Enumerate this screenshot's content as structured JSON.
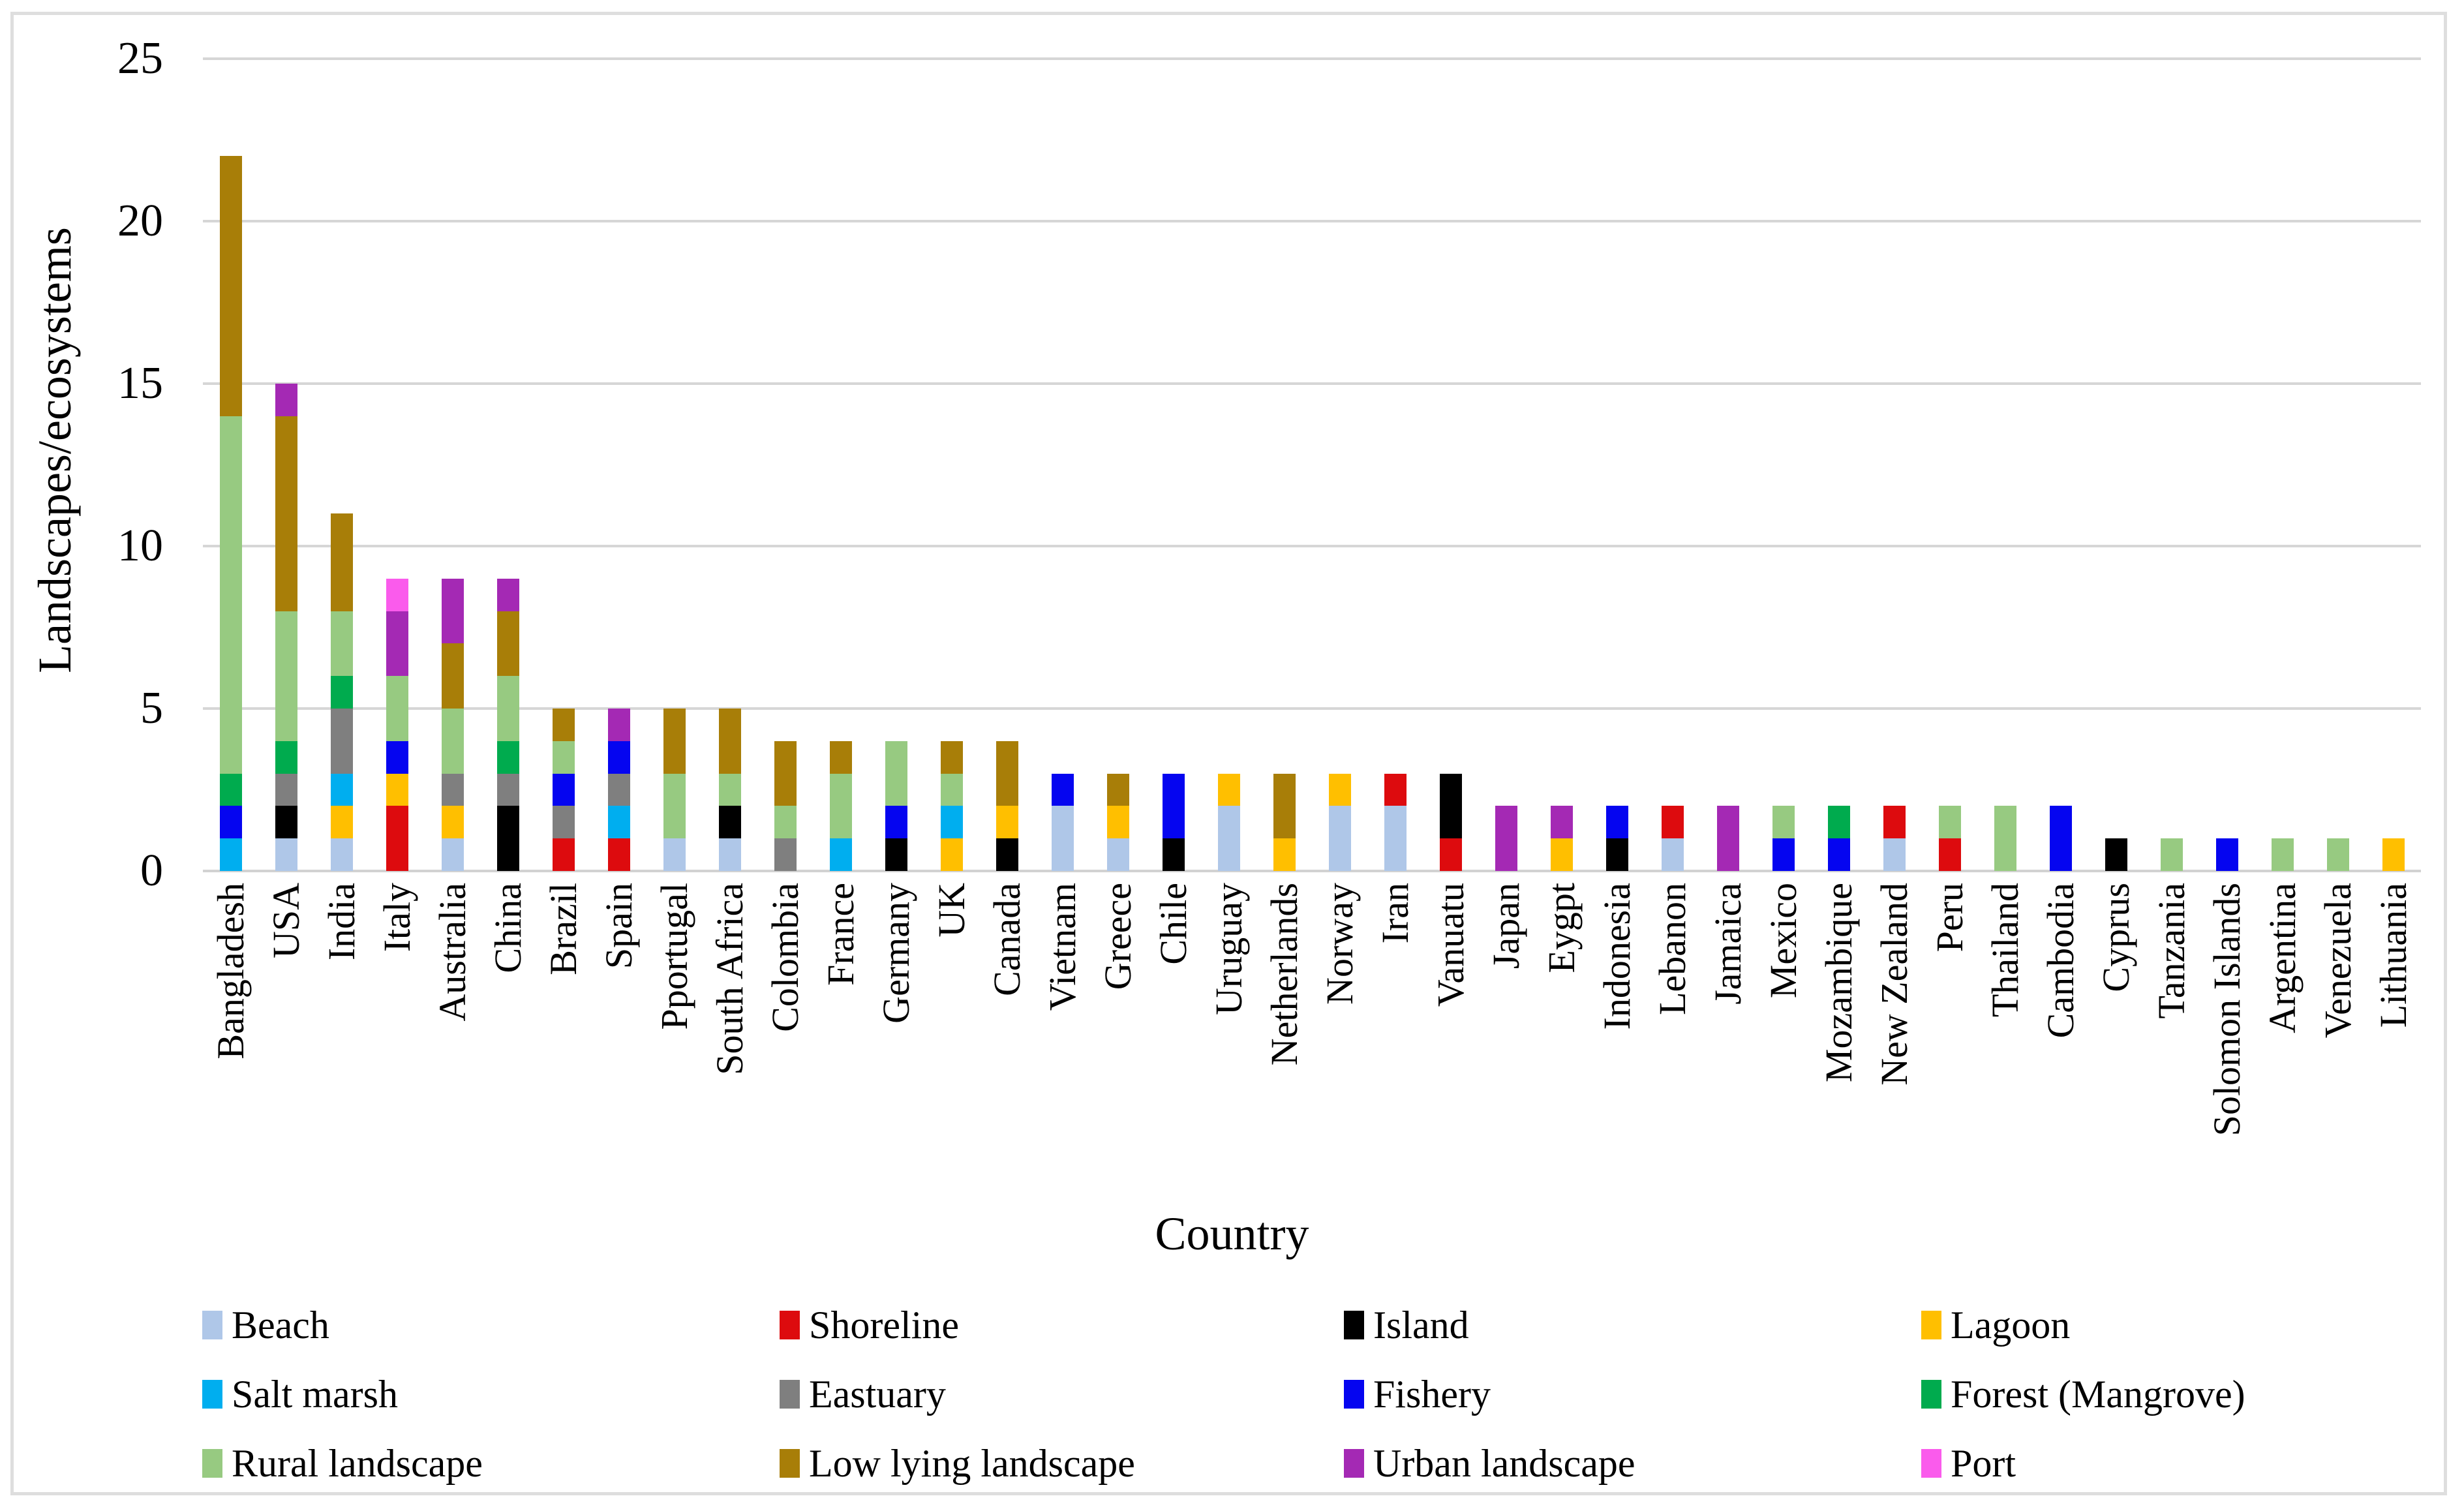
{
  "figure": {
    "y_axis_title": "Landscapes/ecosystems",
    "x_axis_title": "Country",
    "y_ticks": [
      0,
      5,
      10,
      15,
      20,
      25
    ]
  },
  "chart_data": {
    "type": "bar",
    "stacked": true,
    "title": "",
    "xlabel": "Country",
    "ylabel": "Landscapes/ecosystems",
    "ylim": [
      0,
      25
    ],
    "grid": true,
    "legend_position": "bottom",
    "categories": [
      "Bangladesh",
      "USA",
      "India",
      "Italy",
      "Australia",
      "China",
      "Brazil",
      "Spain",
      "Pportugal",
      "South Africa",
      "Colombia",
      "France",
      "Germany",
      "UK",
      "Canada",
      "Vietnam",
      "Greece",
      "Chile",
      "Uruguay",
      "Netherlands",
      "Norway",
      "Iran",
      "Vanuatu",
      "Japan",
      "Eygpt",
      "Indonesia",
      "Lebanon",
      "Jamaica",
      "Mexico",
      "Mozambique",
      "New Zealand",
      "Peru",
      "Thailand",
      "Cambodia",
      "Cyprus",
      "Tanzania",
      "Solomon Islands",
      "Argentina",
      "Venezuela",
      "Lithuania"
    ],
    "series": [
      {
        "key": "beach",
        "name": "Beach",
        "color": "#AFC7E8",
        "values": [
          0,
          1,
          1,
          0,
          1,
          0,
          0,
          0,
          1,
          1,
          0,
          0,
          0,
          0,
          0,
          2,
          1,
          0,
          2,
          0,
          2,
          2,
          0,
          0,
          0,
          0,
          1,
          0,
          0,
          0,
          1,
          0,
          0,
          0,
          0,
          0,
          0,
          0,
          0,
          0
        ]
      },
      {
        "key": "shoreline",
        "name": "Shoreline",
        "color": "#DD0B0E",
        "values": [
          0,
          0,
          0,
          2,
          0,
          0,
          1,
          1,
          0,
          0,
          0,
          0,
          0,
          0,
          0,
          0,
          0,
          0,
          0,
          0,
          0,
          1,
          1,
          0,
          0,
          0,
          1,
          0,
          0,
          0,
          1,
          1,
          0,
          0,
          0,
          0,
          0,
          0,
          0,
          0
        ]
      },
      {
        "key": "island",
        "name": "Island",
        "color": "#000000",
        "values": [
          0,
          1,
          0,
          0,
          0,
          2,
          0,
          0,
          0,
          1,
          0,
          0,
          1,
          0,
          1,
          0,
          0,
          1,
          0,
          0,
          0,
          0,
          2,
          0,
          0,
          1,
          0,
          0,
          0,
          0,
          0,
          0,
          0,
          0,
          1,
          0,
          0,
          0,
          0,
          0
        ]
      },
      {
        "key": "lagoon",
        "name": "Lagoon",
        "color": "#FFBF00",
        "values": [
          0,
          0,
          1,
          1,
          1,
          0,
          0,
          0,
          0,
          0,
          0,
          0,
          0,
          1,
          1,
          0,
          1,
          0,
          1,
          1,
          1,
          0,
          0,
          0,
          1,
          0,
          0,
          0,
          0,
          0,
          0,
          0,
          0,
          0,
          0,
          0,
          0,
          0,
          0,
          1
        ]
      },
      {
        "key": "salt_marsh",
        "name": "Salt marsh",
        "color": "#00AEEF",
        "values": [
          1,
          0,
          1,
          0,
          0,
          0,
          0,
          1,
          0,
          0,
          0,
          1,
          0,
          1,
          0,
          0,
          0,
          0,
          0,
          0,
          0,
          0,
          0,
          0,
          0,
          0,
          0,
          0,
          0,
          0,
          0,
          0,
          0,
          0,
          0,
          0,
          0,
          0,
          0,
          0
        ]
      },
      {
        "key": "estuary",
        "name": "Eastuary",
        "color": "#7F7F7F",
        "values": [
          0,
          1,
          2,
          0,
          1,
          1,
          1,
          1,
          0,
          0,
          1,
          0,
          0,
          0,
          0,
          0,
          0,
          0,
          0,
          0,
          0,
          0,
          0,
          0,
          0,
          0,
          0,
          0,
          0,
          0,
          0,
          0,
          0,
          0,
          0,
          0,
          0,
          0,
          0,
          0
        ]
      },
      {
        "key": "fishery",
        "name": "Fishery",
        "color": "#0505F0",
        "values": [
          1,
          0,
          0,
          1,
          0,
          0,
          1,
          1,
          0,
          0,
          0,
          0,
          1,
          0,
          0,
          1,
          0,
          2,
          0,
          0,
          0,
          0,
          0,
          0,
          0,
          1,
          0,
          0,
          1,
          1,
          0,
          0,
          0,
          2,
          0,
          0,
          1,
          0,
          0,
          0
        ]
      },
      {
        "key": "forest",
        "name": "Forest (Mangrove)",
        "color": "#00AB4E",
        "values": [
          1,
          1,
          1,
          0,
          0,
          1,
          0,
          0,
          0,
          0,
          0,
          0,
          0,
          0,
          0,
          0,
          0,
          0,
          0,
          0,
          0,
          0,
          0,
          0,
          0,
          0,
          0,
          0,
          0,
          1,
          0,
          0,
          0,
          0,
          0,
          0,
          0,
          0,
          0,
          0
        ]
      },
      {
        "key": "rural",
        "name": "Rural landscape",
        "color": "#97CA81",
        "values": [
          11,
          4,
          2,
          2,
          2,
          2,
          1,
          0,
          2,
          1,
          1,
          2,
          2,
          1,
          0,
          0,
          0,
          0,
          0,
          0,
          0,
          0,
          0,
          0,
          0,
          0,
          0,
          0,
          1,
          0,
          0,
          1,
          2,
          0,
          0,
          1,
          0,
          1,
          1,
          0
        ]
      },
      {
        "key": "low_lying",
        "name": "Low lying landscape",
        "color": "#A87E08",
        "values": [
          8,
          6,
          3,
          0,
          2,
          2,
          1,
          0,
          2,
          2,
          2,
          1,
          0,
          1,
          2,
          0,
          1,
          0,
          0,
          2,
          0,
          0,
          0,
          0,
          0,
          0,
          0,
          0,
          0,
          0,
          0,
          0,
          0,
          0,
          0,
          0,
          0,
          0,
          0,
          0
        ]
      },
      {
        "key": "urban",
        "name": "Urban landscape",
        "color": "#A429B4",
        "values": [
          0,
          1,
          0,
          2,
          2,
          1,
          0,
          1,
          0,
          0,
          0,
          0,
          0,
          0,
          0,
          0,
          0,
          0,
          0,
          0,
          0,
          0,
          0,
          2,
          1,
          0,
          0,
          2,
          0,
          0,
          0,
          0,
          0,
          0,
          0,
          0,
          0,
          0,
          0,
          0
        ]
      },
      {
        "key": "port",
        "name": "Port",
        "color": "#FA5BEC",
        "values": [
          0,
          0,
          0,
          1,
          0,
          0,
          0,
          0,
          0,
          0,
          0,
          0,
          0,
          0,
          0,
          0,
          0,
          0,
          0,
          0,
          0,
          0,
          0,
          0,
          0,
          0,
          0,
          0,
          0,
          0,
          0,
          0,
          0,
          0,
          0,
          0,
          0,
          0,
          0,
          0
        ]
      }
    ]
  }
}
